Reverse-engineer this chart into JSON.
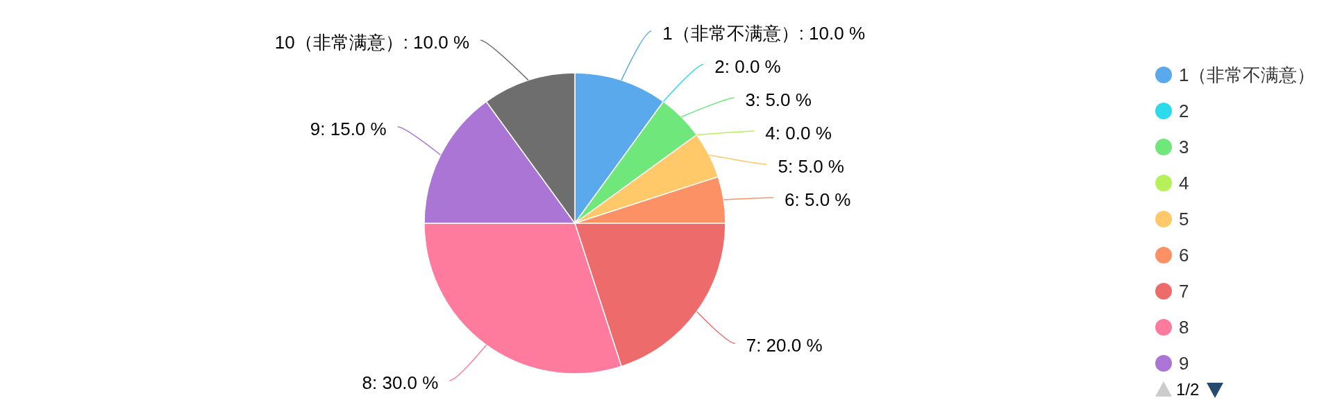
{
  "chart_data": {
    "type": "pie",
    "categories": [
      "1（非常不满意）",
      "2",
      "3",
      "4",
      "5",
      "6",
      "7",
      "8",
      "9",
      "10（非常满意）"
    ],
    "values": [
      10,
      0,
      5,
      0,
      5,
      5,
      20,
      30,
      15,
      10
    ],
    "colors": [
      "#5aa9ec",
      "#2cdaec",
      "#6fe77b",
      "#b6f15a",
      "#ffc969",
      "#fd9166",
      "#ee6b6b",
      "#ff7b9d",
      "#aa75d4",
      "#6e6e6e"
    ],
    "value_labels": [
      ": 10.0 %",
      ": 0.0 %",
      ": 5.0 %",
      ": 0.0 %",
      ": 5.0 %",
      ": 5.0 %",
      ": 20.0 %",
      ": 30.0 %",
      ": 15.0 %",
      ": 10.0 %"
    ],
    "legend": "right",
    "annotations": [
      "1/2"
    ]
  }
}
